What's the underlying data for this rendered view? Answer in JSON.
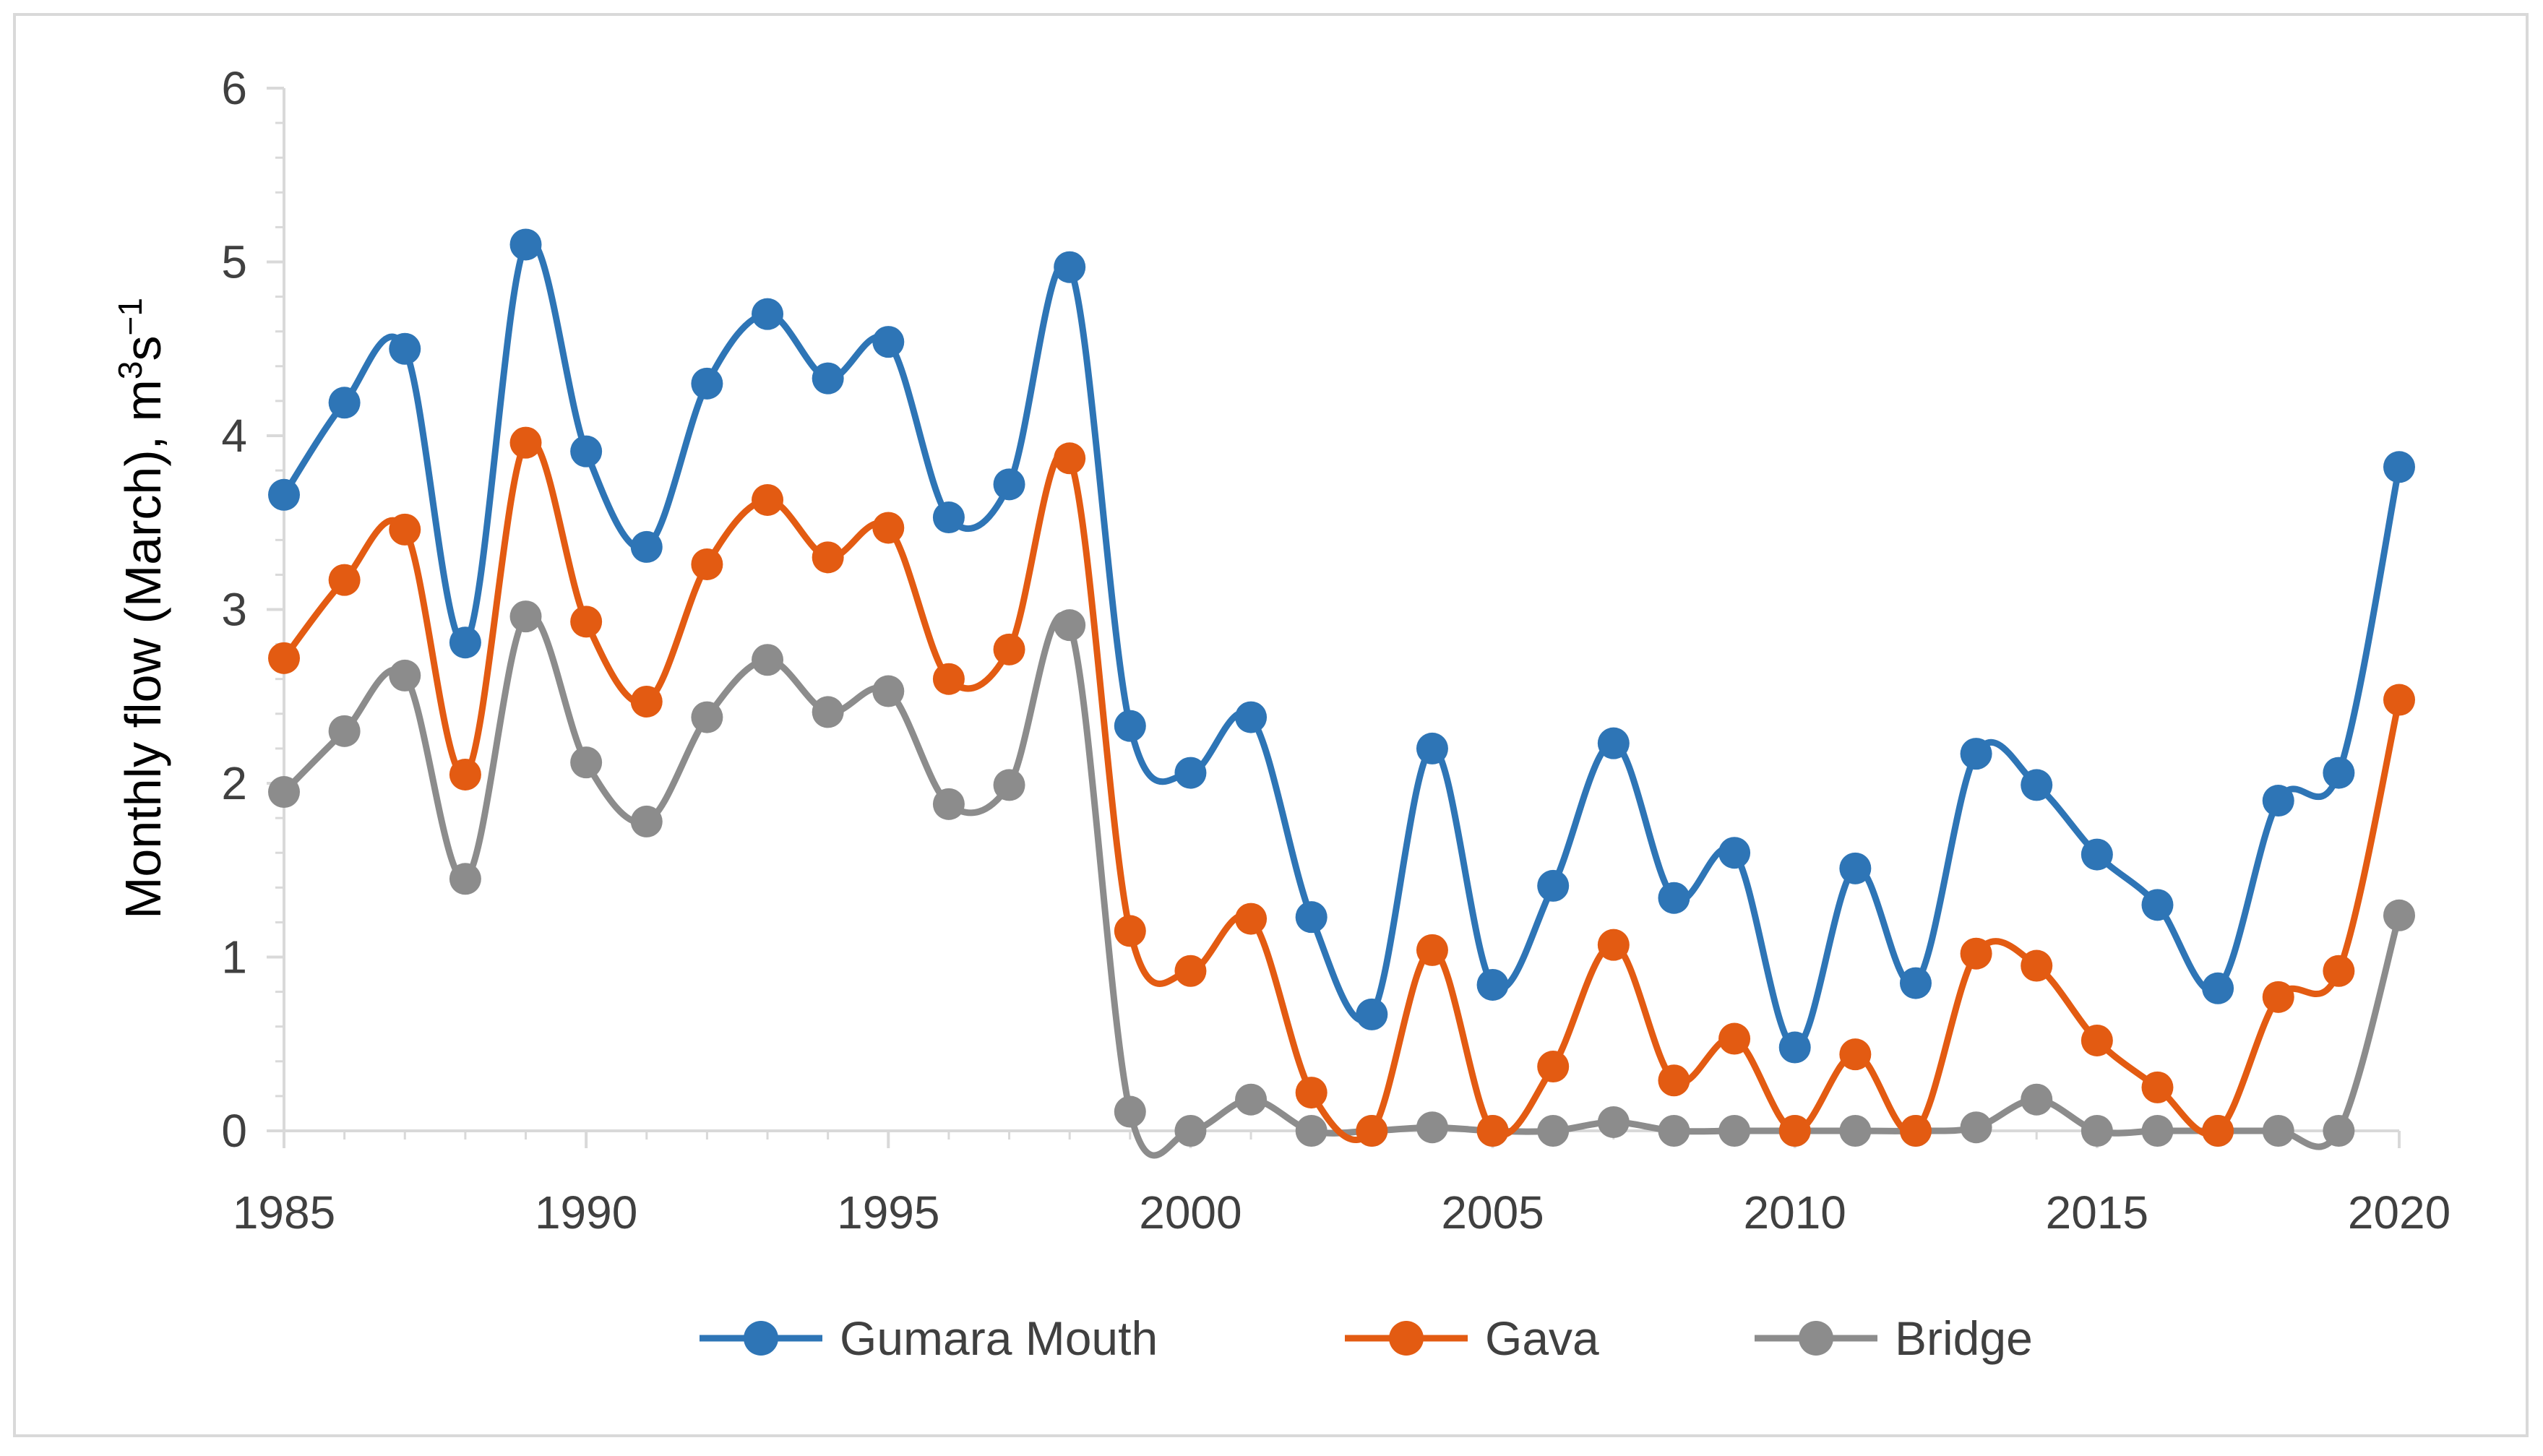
{
  "chart_data": {
    "type": "line",
    "title": "",
    "xlabel": "",
    "ylabel": "Monthly flow (March), m",
    "ylabel_unit_sup1": "3",
    "ylabel_unit_s": "s",
    "ylabel_unit_sup2": "−1",
    "xlim": [
      1985,
      2020
    ],
    "ylim": [
      0,
      6
    ],
    "x_ticks": [
      "1985",
      "1990",
      "1995",
      "2000",
      "2005",
      "2010",
      "2015",
      "2020"
    ],
    "y_ticks": [
      "0",
      "1",
      "2",
      "3",
      "4",
      "5",
      "6"
    ],
    "grid": false,
    "legend_position": "bottom",
    "x": [
      1985,
      1986,
      1987,
      1988,
      1989,
      1990,
      1991,
      1992,
      1993,
      1994,
      1995,
      1996,
      1997,
      1998,
      1999,
      2000,
      2001,
      2002,
      2003,
      2004,
      2005,
      2006,
      2007,
      2008,
      2009,
      2010,
      2011,
      2012,
      2013,
      2014,
      2015,
      2016,
      2017,
      2018,
      2019,
      2020
    ],
    "series": [
      {
        "name": "Gumara Mouth",
        "color": "#2e75b6",
        "values": [
          3.66,
          4.19,
          4.5,
          2.81,
          5.1,
          3.91,
          3.36,
          4.3,
          4.7,
          4.33,
          4.54,
          3.53,
          3.72,
          4.97,
          2.33,
          2.06,
          2.38,
          1.23,
          0.67,
          2.2,
          0.84,
          1.41,
          2.23,
          1.34,
          1.6,
          0.48,
          1.51,
          0.85,
          2.17,
          1.99,
          1.59,
          1.3,
          0.82,
          1.9,
          2.06,
          3.82
        ]
      },
      {
        "name": "Gava",
        "color": "#e35b12",
        "values": [
          2.72,
          3.17,
          3.46,
          2.05,
          3.96,
          2.93,
          2.47,
          3.26,
          3.63,
          3.3,
          3.47,
          2.6,
          2.77,
          3.87,
          1.15,
          0.92,
          1.22,
          0.22,
          0.0,
          1.04,
          0.0,
          0.37,
          1.07,
          0.29,
          0.53,
          0.0,
          0.44,
          0.0,
          1.02,
          0.95,
          0.52,
          0.25,
          0.0,
          0.77,
          0.92,
          2.48
        ]
      },
      {
        "name": "Bridge",
        "color": "#8c8c8c",
        "values": [
          1.95,
          2.3,
          2.62,
          1.45,
          2.96,
          2.12,
          1.78,
          2.38,
          2.71,
          2.41,
          2.53,
          1.88,
          1.99,
          2.91,
          0.11,
          0.0,
          0.18,
          0.0,
          0.0,
          0.02,
          0.0,
          0.0,
          0.05,
          0.0,
          0.0,
          0.0,
          0.0,
          0.0,
          0.02,
          0.18,
          0.0,
          0.0,
          0.0,
          0.0,
          0.0,
          1.24
        ]
      }
    ]
  }
}
